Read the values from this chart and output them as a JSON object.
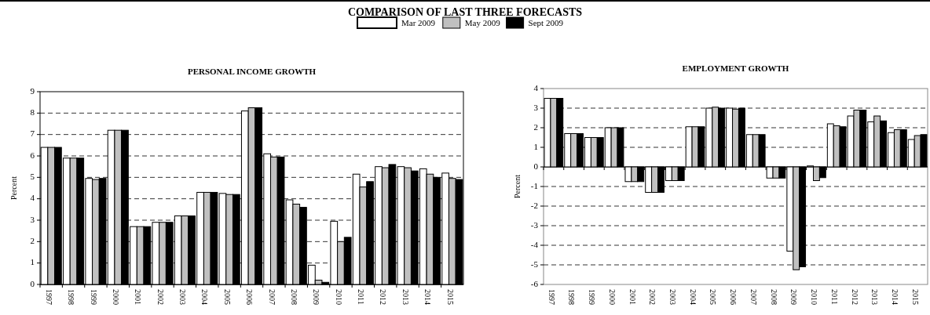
{
  "chart_data": [
    {
      "type": "bar",
      "title": "PERSONAL INCOME GROWTH",
      "ylabel": "Percent",
      "annotations": [
        "COMPARISON OF LAST THREE FORECASTS"
      ],
      "categories": [
        "1997",
        "1998",
        "1999",
        "2000",
        "2001",
        "2002",
        "2003",
        "2004",
        "2005",
        "2006",
        "2007",
        "2008",
        "2009",
        "2010",
        "2011",
        "2012",
        "2013",
        "2014",
        "2015"
      ],
      "series": [
        {
          "name": "Mar 2009",
          "color": "#ffffff",
          "values": [
            6.4,
            5.9,
            4.95,
            7.2,
            2.7,
            2.9,
            3.2,
            4.3,
            4.25,
            8.1,
            6.1,
            3.95,
            0.9,
            2.95,
            5.15,
            5.5,
            5.5,
            5.4,
            5.2
          ]
        },
        {
          "name": "May 2009",
          "color": "#c0c0c0",
          "values": [
            6.4,
            5.9,
            4.9,
            7.2,
            2.7,
            2.9,
            3.2,
            4.3,
            4.2,
            8.25,
            5.95,
            3.75,
            0.2,
            2.0,
            4.55,
            5.45,
            5.45,
            5.15,
            4.95
          ]
        },
        {
          "name": "Sept 2009",
          "color": "#000000",
          "values": [
            6.4,
            5.9,
            4.95,
            7.2,
            2.7,
            2.9,
            3.2,
            4.3,
            4.2,
            8.25,
            5.95,
            3.6,
            0.1,
            2.2,
            4.8,
            5.6,
            5.3,
            5.0,
            4.9
          ]
        }
      ],
      "ylim": [
        0,
        9
      ],
      "yticks": [
        0,
        1,
        2,
        3,
        4,
        5,
        6,
        7,
        8,
        9
      ],
      "grid": "y",
      "legend": "top"
    },
    {
      "type": "bar",
      "title": "EMPLOYMENT GROWTH",
      "ylabel": "Percent",
      "categories": [
        "1997",
        "1998",
        "1999",
        "2000",
        "2001",
        "2002",
        "2003",
        "2004",
        "2005",
        "2006",
        "2007",
        "2008",
        "2009",
        "2010",
        "2011",
        "2012",
        "2013",
        "2014",
        "2015"
      ],
      "series": [
        {
          "color": "#ffffff",
          "values": [
            3.5,
            1.7,
            1.5,
            2.0,
            -0.75,
            -1.3,
            -0.7,
            2.05,
            3.0,
            3.0,
            1.65,
            -0.57,
            -4.3,
            0.05,
            2.2,
            2.6,
            2.3,
            1.75,
            1.4
          ]
        },
        {
          "color": "#c0c0c0",
          "values": [
            3.5,
            1.7,
            1.5,
            2.0,
            -0.75,
            -1.3,
            -0.7,
            2.05,
            3.05,
            2.95,
            1.65,
            -0.57,
            -5.25,
            -0.7,
            2.1,
            2.9,
            2.6,
            1.9,
            1.6
          ]
        },
        {
          "color": "#000000",
          "values": [
            3.5,
            1.7,
            1.5,
            2.0,
            -0.75,
            -1.3,
            -0.7,
            2.05,
            3.0,
            3.0,
            1.65,
            -0.57,
            -5.1,
            -0.55,
            2.05,
            2.9,
            2.35,
            1.9,
            1.65
          ]
        }
      ],
      "ylim": [
        -6,
        4
      ],
      "yticks": [
        -6,
        -5,
        -4,
        -3,
        -2,
        -1,
        0,
        1,
        2,
        3,
        4
      ],
      "grid": "y"
    }
  ]
}
